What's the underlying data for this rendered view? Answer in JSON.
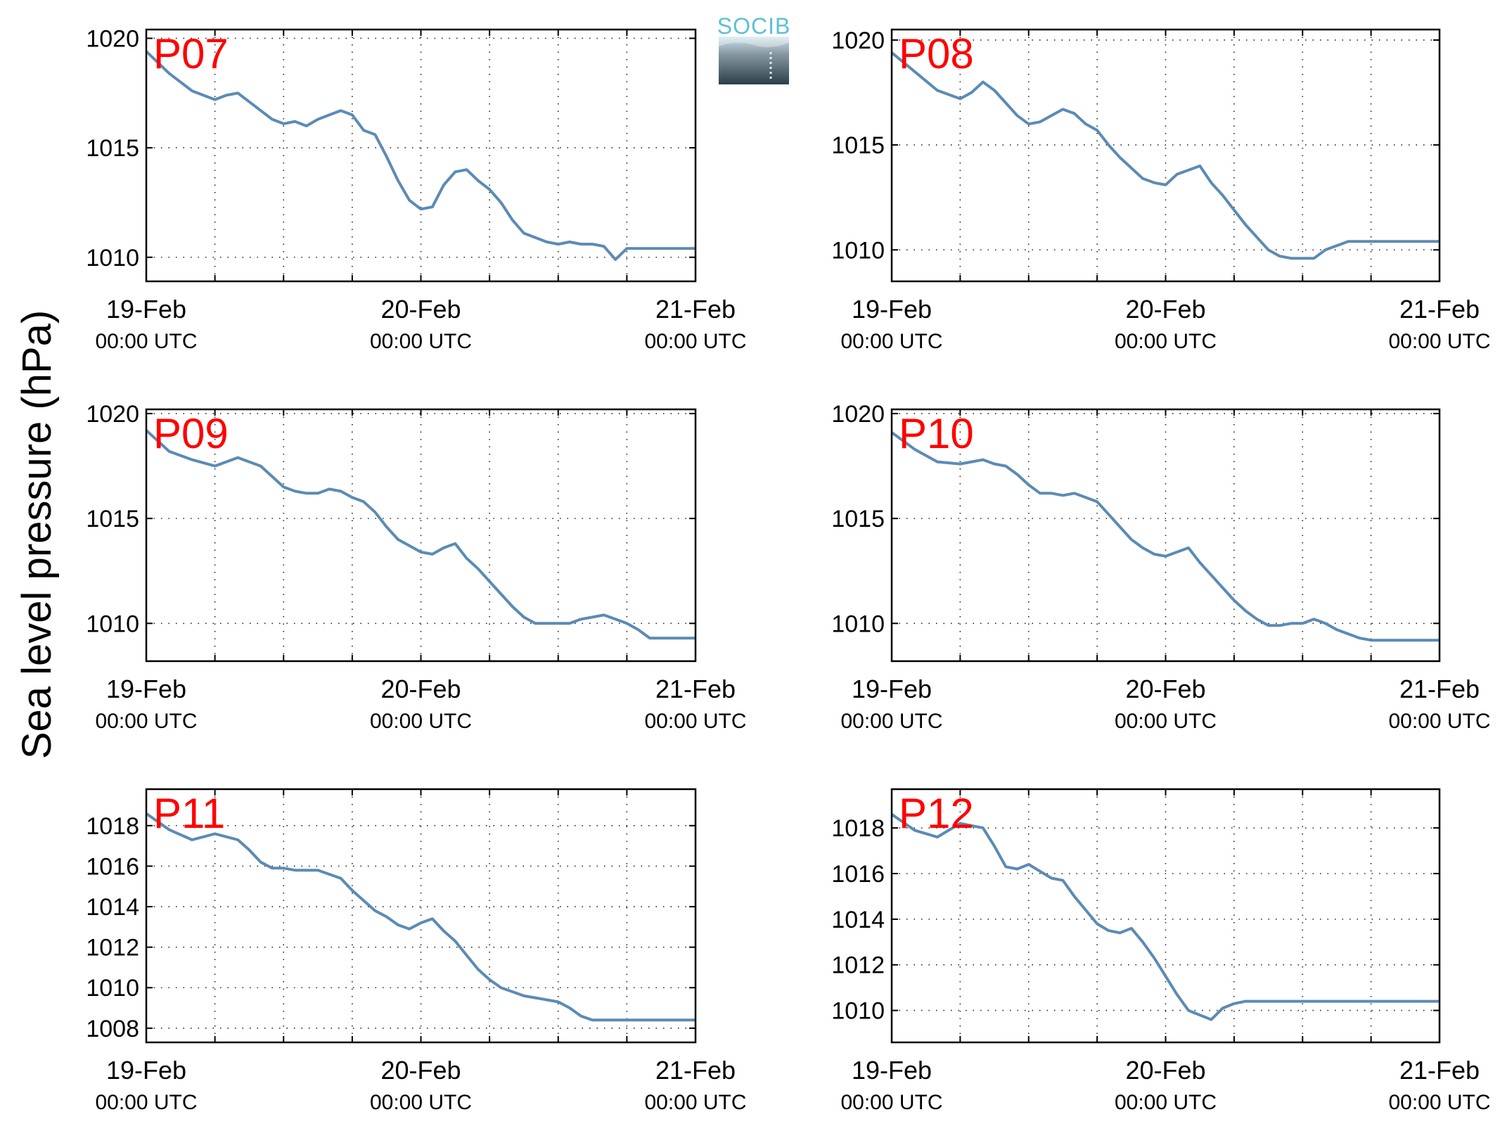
{
  "figure": {
    "ylabel": "Sea level pressure (hPa)",
    "logo_text": "SOCIB",
    "line_color": "#5b8bb4",
    "label_color": "#ff0000"
  },
  "chart_data": [
    {
      "type": "line",
      "panel": "P07",
      "x_ticks": [
        {
          "date": "19-Feb",
          "time": "00:00 UTC"
        },
        {
          "date": "20-Feb",
          "time": "00:00 UTC"
        },
        {
          "date": "21-Feb",
          "time": "00:00 UTC"
        }
      ],
      "xlim_hours": [
        0,
        48
      ],
      "ylim": [
        1008.9,
        1020.4
      ],
      "yticks": [
        1010,
        1015,
        1020
      ],
      "grid": true,
      "x_hours": [
        0,
        2,
        4,
        6,
        7,
        8,
        9,
        10,
        11,
        12,
        13,
        14,
        15,
        16,
        17,
        18,
        19,
        20,
        21,
        22,
        23,
        24,
        25,
        26,
        27,
        28,
        29,
        30,
        31,
        32,
        33,
        34,
        35,
        36,
        37,
        38,
        39,
        40,
        41,
        42,
        43,
        44,
        45,
        46,
        46.5,
        47,
        48
      ],
      "values": [
        1019.4,
        1018.4,
        1017.6,
        1017.2,
        1017.4,
        1017.5,
        1017.1,
        1016.7,
        1016.3,
        1016.1,
        1016.2,
        1016.0,
        1016.3,
        1016.5,
        1016.7,
        1016.5,
        1015.8,
        1015.6,
        1014.6,
        1013.5,
        1012.6,
        1012.2,
        1012.3,
        1013.3,
        1013.9,
        1014.0,
        1013.5,
        1013.1,
        1012.5,
        1011.7,
        1011.1,
        1010.9,
        1010.7,
        1010.6,
        1010.7,
        1010.6,
        1010.6,
        1010.5,
        1009.9,
        1010.4,
        1010.4,
        1010.4,
        1010.4,
        1010.4,
        1010.4,
        1010.4,
        1010.4
      ]
    },
    {
      "type": "line",
      "panel": "P08",
      "x_ticks": [
        {
          "date": "19-Feb",
          "time": "00:00 UTC"
        },
        {
          "date": "20-Feb",
          "time": "00:00 UTC"
        },
        {
          "date": "21-Feb",
          "time": "00:00 UTC"
        }
      ],
      "xlim_hours": [
        0,
        48
      ],
      "ylim": [
        1008.5,
        1020.5
      ],
      "yticks": [
        1010,
        1015,
        1020
      ],
      "grid": true,
      "x_hours": [
        0,
        2,
        4,
        6,
        7,
        8,
        9,
        10,
        11,
        12,
        13,
        14,
        15,
        16,
        17,
        18,
        19,
        20,
        21,
        22,
        23,
        24,
        25,
        26,
        27,
        28,
        29,
        30,
        31,
        32,
        33,
        34,
        35,
        36,
        37,
        38,
        39,
        40,
        41,
        42,
        43,
        44,
        45,
        46,
        47,
        48
      ],
      "values": [
        1019.4,
        1018.5,
        1017.6,
        1017.2,
        1017.5,
        1018.0,
        1017.6,
        1017.0,
        1016.4,
        1016.0,
        1016.1,
        1016.4,
        1016.7,
        1016.5,
        1016.0,
        1015.7,
        1015.0,
        1014.4,
        1013.9,
        1013.4,
        1013.2,
        1013.1,
        1013.6,
        1013.8,
        1014.0,
        1013.2,
        1012.6,
        1011.9,
        1011.2,
        1010.6,
        1010.0,
        1009.7,
        1009.6,
        1009.6,
        1009.6,
        1010.0,
        1010.2,
        1010.4,
        1010.4,
        1010.4,
        1010.4,
        1010.4,
        1010.4,
        1010.4,
        1010.4,
        1010.4
      ]
    },
    {
      "type": "line",
      "panel": "P09",
      "x_ticks": [
        {
          "date": "19-Feb",
          "time": "00:00 UTC"
        },
        {
          "date": "20-Feb",
          "time": "00:00 UTC"
        },
        {
          "date": "21-Feb",
          "time": "00:00 UTC"
        }
      ],
      "xlim_hours": [
        0,
        48
      ],
      "ylim": [
        1008.2,
        1020.2
      ],
      "yticks": [
        1010,
        1015,
        1020
      ],
      "grid": true,
      "x_hours": [
        0,
        2,
        4,
        6,
        8,
        9,
        10,
        11,
        12,
        13,
        14,
        15,
        16,
        17,
        18,
        19,
        20,
        21,
        22,
        23,
        24,
        25,
        26,
        27,
        28,
        29,
        30,
        31,
        32,
        33,
        34,
        35,
        36,
        37,
        38,
        39,
        40,
        41,
        42,
        43,
        44,
        45,
        46,
        47,
        48
      ],
      "values": [
        1019.2,
        1018.2,
        1017.8,
        1017.5,
        1017.9,
        1017.7,
        1017.5,
        1017.0,
        1016.5,
        1016.3,
        1016.2,
        1016.2,
        1016.4,
        1016.3,
        1016.0,
        1015.8,
        1015.3,
        1014.6,
        1014.0,
        1013.7,
        1013.4,
        1013.3,
        1013.6,
        1013.8,
        1013.1,
        1012.6,
        1012.0,
        1011.4,
        1010.8,
        1010.3,
        1010.0,
        1010.0,
        1010.0,
        1010.0,
        1010.2,
        1010.3,
        1010.4,
        1010.2,
        1010.0,
        1009.7,
        1009.3,
        1009.3,
        1009.3,
        1009.3,
        1009.3
      ]
    },
    {
      "type": "line",
      "panel": "P10",
      "x_ticks": [
        {
          "date": "19-Feb",
          "time": "00:00 UTC"
        },
        {
          "date": "20-Feb",
          "time": "00:00 UTC"
        },
        {
          "date": "21-Feb",
          "time": "00:00 UTC"
        }
      ],
      "xlim_hours": [
        0,
        48
      ],
      "ylim": [
        1008.2,
        1020.2
      ],
      "yticks": [
        1010,
        1015,
        1020
      ],
      "grid": true,
      "x_hours": [
        0,
        2,
        4,
        6,
        8,
        9,
        10,
        11,
        12,
        13,
        14,
        15,
        16,
        17,
        18,
        19,
        20,
        21,
        22,
        23,
        24,
        25,
        26,
        27,
        28,
        29,
        30,
        31,
        32,
        33,
        34,
        35,
        36,
        37,
        38,
        39,
        40,
        41,
        42,
        43,
        44,
        45,
        46,
        47,
        48
      ],
      "values": [
        1019.1,
        1018.3,
        1017.7,
        1017.6,
        1017.8,
        1017.6,
        1017.5,
        1017.1,
        1016.6,
        1016.2,
        1016.2,
        1016.1,
        1016.2,
        1016.0,
        1015.8,
        1015.2,
        1014.6,
        1014.0,
        1013.6,
        1013.3,
        1013.2,
        1013.4,
        1013.6,
        1012.9,
        1012.3,
        1011.7,
        1011.1,
        1010.6,
        1010.2,
        1009.9,
        1009.9,
        1010.0,
        1010.0,
        1010.2,
        1010.0,
        1009.7,
        1009.5,
        1009.3,
        1009.2,
        1009.2,
        1009.2,
        1009.2,
        1009.2,
        1009.2,
        1009.2
      ]
    },
    {
      "type": "line",
      "panel": "P11",
      "x_ticks": [
        {
          "date": "19-Feb",
          "time": "00:00 UTC"
        },
        {
          "date": "20-Feb",
          "time": "00:00 UTC"
        },
        {
          "date": "21-Feb",
          "time": "00:00 UTC"
        }
      ],
      "xlim_hours": [
        0,
        48
      ],
      "ylim": [
        1007.3,
        1019.8
      ],
      "yticks": [
        1008,
        1010,
        1012,
        1014,
        1016,
        1018
      ],
      "grid": true,
      "x_hours": [
        0,
        2,
        4,
        6,
        8,
        9,
        10,
        11,
        12,
        13,
        14,
        15,
        16,
        17,
        18,
        19,
        20,
        21,
        22,
        23,
        24,
        25,
        26,
        27,
        28,
        29,
        30,
        31,
        32,
        33,
        34,
        35,
        36,
        37,
        38,
        39,
        40,
        41,
        42,
        43,
        44,
        45,
        46,
        47,
        48
      ],
      "values": [
        1018.6,
        1017.8,
        1017.3,
        1017.6,
        1017.3,
        1016.8,
        1016.2,
        1015.9,
        1015.9,
        1015.8,
        1015.8,
        1015.8,
        1015.6,
        1015.4,
        1014.8,
        1014.3,
        1013.8,
        1013.5,
        1013.1,
        1012.9,
        1013.2,
        1013.4,
        1012.8,
        1012.3,
        1011.6,
        1010.9,
        1010.4,
        1010.0,
        1009.8,
        1009.6,
        1009.5,
        1009.4,
        1009.3,
        1009.0,
        1008.6,
        1008.4,
        1008.4,
        1008.4,
        1008.4,
        1008.4,
        1008.4,
        1008.4,
        1008.4,
        1008.4,
        1008.4
      ]
    },
    {
      "type": "line",
      "panel": "P12",
      "x_ticks": [
        {
          "date": "19-Feb",
          "time": "00:00 UTC"
        },
        {
          "date": "20-Feb",
          "time": "00:00 UTC"
        },
        {
          "date": "21-Feb",
          "time": "00:00 UTC"
        }
      ],
      "xlim_hours": [
        0,
        48
      ],
      "ylim": [
        1008.6,
        1019.7
      ],
      "yticks": [
        1010,
        1012,
        1014,
        1016,
        1018
      ],
      "grid": true,
      "x_hours": [
        0,
        2,
        4,
        6,
        7,
        8,
        9,
        10,
        11,
        12,
        13,
        14,
        15,
        16,
        17,
        18,
        19,
        20,
        21,
        22,
        23,
        24,
        25,
        26,
        27,
        28,
        29,
        30,
        31,
        32,
        33,
        34,
        35,
        36,
        37,
        38,
        39,
        40,
        41,
        42,
        43,
        44,
        45,
        46,
        47,
        48
      ],
      "values": [
        1018.6,
        1017.9,
        1017.6,
        1018.2,
        1018.1,
        1018.0,
        1017.2,
        1016.3,
        1016.2,
        1016.4,
        1016.1,
        1015.8,
        1015.7,
        1015.0,
        1014.4,
        1013.8,
        1013.5,
        1013.4,
        1013.6,
        1013.0,
        1012.3,
        1011.5,
        1010.7,
        1010.0,
        1009.8,
        1009.6,
        1010.1,
        1010.3,
        1010.4,
        1010.4,
        1010.4,
        1010.4,
        1010.4,
        1010.4,
        1010.4,
        1010.4,
        1010.4,
        1010.4,
        1010.4,
        1010.4,
        1010.4,
        1010.4,
        1010.4,
        1010.4,
        1010.4,
        1010.4
      ]
    }
  ]
}
